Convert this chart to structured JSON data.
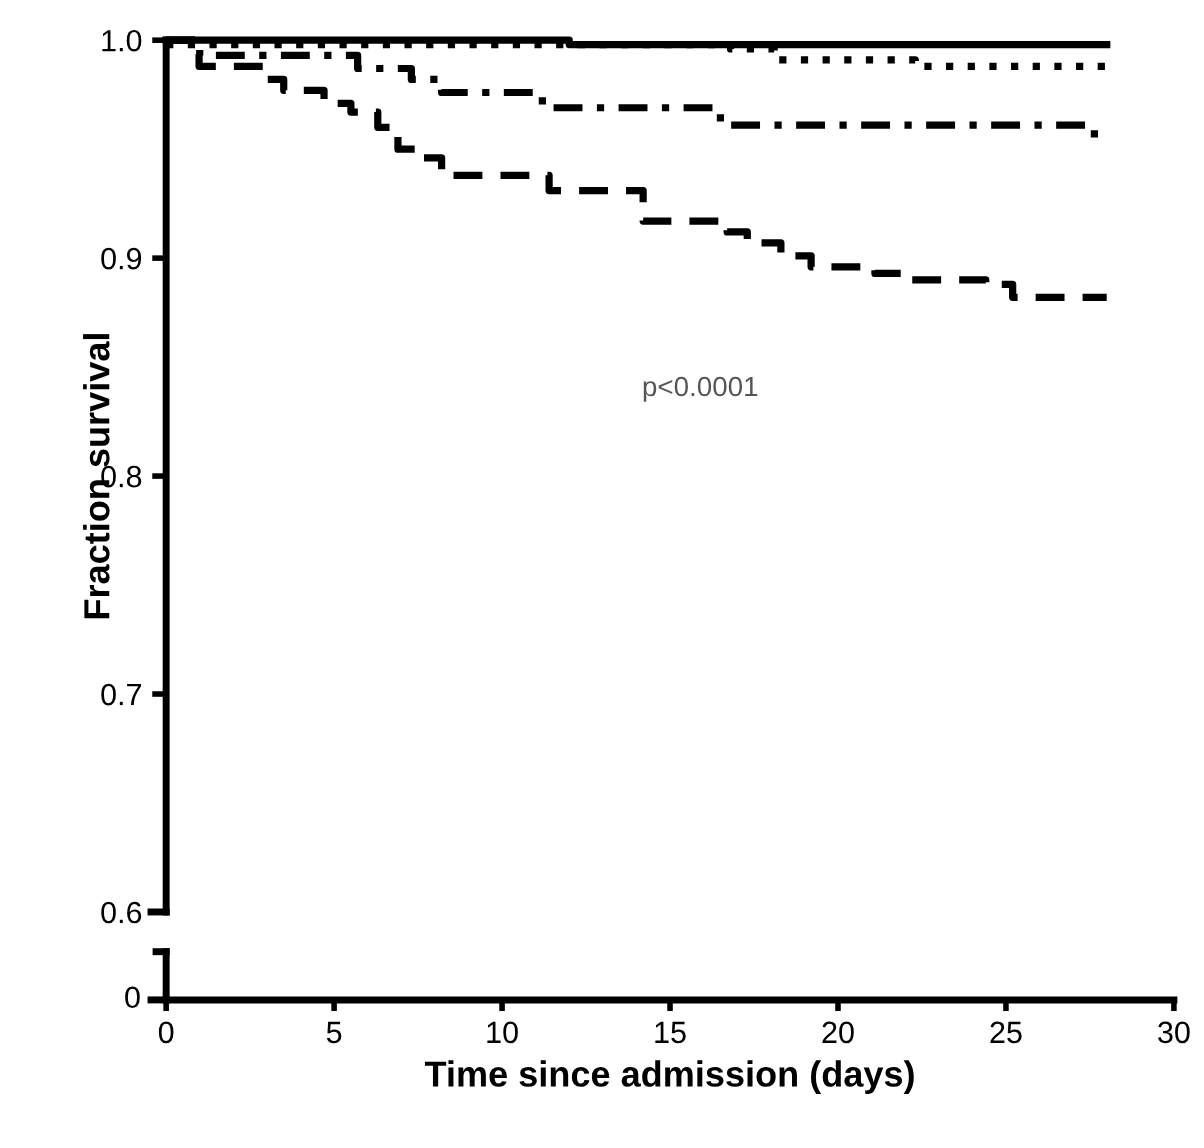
{
  "chart_data": {
    "type": "step",
    "ylabel": "Fraction survival",
    "xlabel": "Time since admission (days)",
    "xlim": [
      0,
      30
    ],
    "xticks": [
      0,
      5,
      10,
      15,
      20,
      25,
      30
    ],
    "ylim": [
      0.6,
      1.0
    ],
    "yticks": [
      0.6,
      0.7,
      0.8,
      0.9,
      {
        "value": 1.0,
        "label": "1.0"
      }
    ],
    "annotations": [
      "p<0.0001",
      "0"
    ],
    "series": [
      {
        "color": "#000000",
        "line_style": "solid",
        "x": [
          0,
          12.0,
          28.0
        ],
        "values": [
          1.0,
          0.998,
          0.998
        ]
      },
      {
        "color": "#000000",
        "line_style": "dotted",
        "x": [
          0,
          16.8,
          18.1,
          22.3,
          28.0
        ],
        "values": [
          0.998,
          0.996,
          0.991,
          0.988,
          0.988
        ]
      },
      {
        "color": "#000000",
        "line_style": "dashdot",
        "x": [
          0,
          1.0,
          5.7,
          7.3,
          8.2,
          11.2,
          16.5,
          27.4,
          28.0
        ],
        "values": [
          1.0,
          0.993,
          0.987,
          0.982,
          0.976,
          0.969,
          0.961,
          0.957,
          0.957
        ]
      },
      {
        "color": "#000000",
        "line_style": "dashed",
        "x": [
          0,
          0.98,
          2.9,
          3.5,
          4.7,
          5.5,
          6.3,
          6.9,
          7.55,
          8.2,
          11.4,
          14.2,
          16.7,
          17.3,
          18.3,
          19.2,
          21.1,
          22.1,
          24.4,
          25.2,
          28.0
        ],
        "values": [
          1.0,
          0.988,
          0.982,
          0.977,
          0.971,
          0.967,
          0.96,
          0.95,
          0.946,
          0.938,
          0.931,
          0.917,
          0.912,
          0.907,
          0.901,
          0.896,
          0.893,
          0.89,
          0.888,
          0.882,
          0.882
        ]
      }
    ]
  }
}
